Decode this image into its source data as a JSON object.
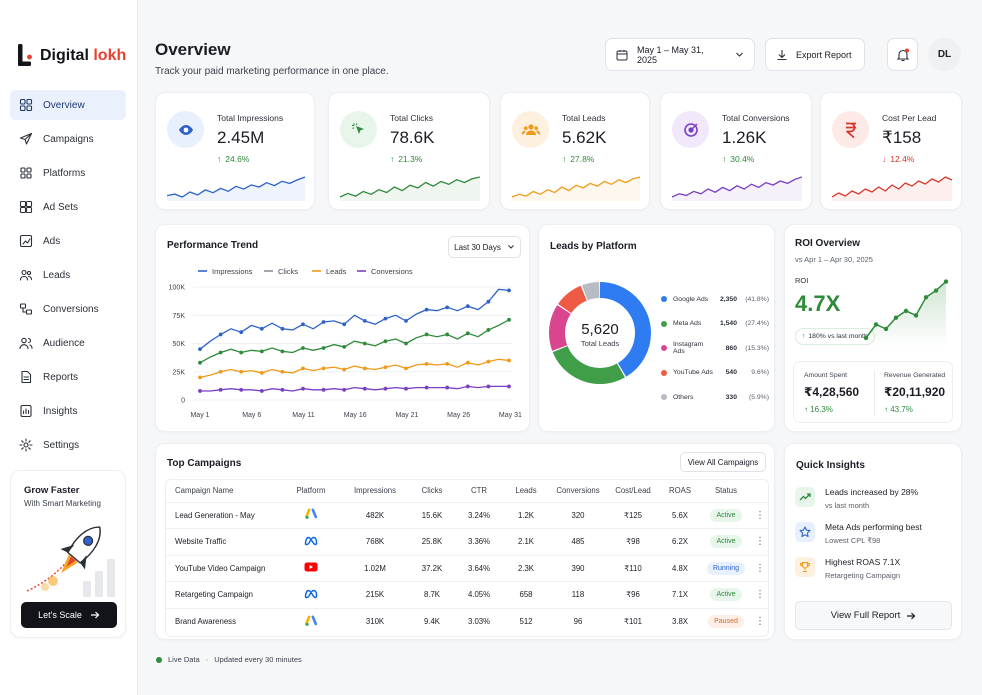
{
  "brand": {
    "name_part1": "Digital ",
    "name_part2": "lokh"
  },
  "nav": [
    {
      "label": "Overview",
      "icon": "grid-icon",
      "active": true
    },
    {
      "label": "Campaigns",
      "icon": "send-icon"
    },
    {
      "label": "Platforms",
      "icon": "apps-icon"
    },
    {
      "label": "Ad Sets",
      "icon": "layers-icon"
    },
    {
      "label": "Ads",
      "icon": "chart-icon"
    },
    {
      "label": "Leads",
      "icon": "users-icon"
    },
    {
      "label": "Conversions",
      "icon": "funnel-icon"
    },
    {
      "label": "Audience",
      "icon": "audience-icon"
    },
    {
      "label": "Reports",
      "icon": "document-icon"
    },
    {
      "label": "Insights",
      "icon": "insights-icon"
    },
    {
      "label": "Settings",
      "icon": "gear-icon"
    }
  ],
  "promo": {
    "title": "Grow Faster",
    "subtitle": "With Smart Marketing",
    "button": "Let's Scale"
  },
  "header": {
    "title": "Overview",
    "subtitle": "Track your paid marketing performance in one place.",
    "date_range": "May 1 – May 31, 2025",
    "export_label": "Export Report",
    "avatar_initials": "DL"
  },
  "kpis": [
    {
      "label": "Total Impressions",
      "value": "2.45M",
      "delta": "24.6%",
      "trend": "up",
      "color": "#2f63c9",
      "bg": "#e8f0fd",
      "icon": "eye-icon"
    },
    {
      "label": "Total Clicks",
      "value": "78.6K",
      "delta": "21.3%",
      "trend": "up",
      "color": "#2e8b3a",
      "bg": "#e7f5ea",
      "icon": "cursor-icon"
    },
    {
      "label": "Total Leads",
      "value": "5.62K",
      "delta": "27.8%",
      "trend": "up",
      "color": "#f09a1a",
      "bg": "#fdf0df",
      "icon": "users-icon"
    },
    {
      "label": "Total Conversions",
      "value": "1.26K",
      "delta": "30.4%",
      "trend": "up",
      "color": "#7b3fc4",
      "bg": "#f1e9fb",
      "icon": "target-icon"
    },
    {
      "label": "Cost Per Lead",
      "value": "₹158",
      "delta": "12.4%",
      "trend": "down",
      "color": "#d5362a",
      "bg": "#fdeae7",
      "icon": "rupee-icon"
    }
  ],
  "trend": {
    "title": "Performance Trend",
    "range_label": "Last 30 Days",
    "legend": [
      "Impressions",
      "Clicks",
      "Leads",
      "Conversions"
    ],
    "colors": [
      "#2f63c9",
      "#8a9099",
      "#f09a1a",
      "#7b3fc4"
    ],
    "line_colors": [
      "#2f63c9",
      "#2e8b3a",
      "#f09a1a",
      "#7b3fc4"
    ],
    "y_ticks": [
      "100K",
      "75K",
      "50K",
      "25K",
      "0"
    ],
    "x_ticks": [
      "May 1",
      "May 6",
      "May 11",
      "May 16",
      "May 21",
      "May 26",
      "May 31"
    ],
    "series": [
      [
        45,
        52,
        58,
        63,
        60,
        66,
        63,
        68,
        63,
        62,
        67,
        63,
        69,
        70,
        67,
        75,
        70,
        67,
        72,
        75,
        70,
        76,
        80,
        79,
        82,
        79,
        83,
        80,
        87,
        98,
        97
      ],
      [
        33,
        38,
        42,
        45,
        42,
        44,
        43,
        46,
        43,
        42,
        46,
        44,
        46,
        49,
        47,
        52,
        50,
        48,
        52,
        54,
        50,
        55,
        58,
        56,
        58,
        54,
        59,
        56,
        62,
        66,
        71
      ],
      [
        20,
        22,
        25,
        27,
        25,
        26,
        24,
        27,
        25,
        24,
        28,
        26,
        28,
        29,
        27,
        30,
        28,
        27,
        29,
        31,
        28,
        31,
        32,
        31,
        32,
        29,
        33,
        31,
        34,
        36,
        35
      ],
      [
        8,
        8,
        9,
        10,
        9,
        9,
        8,
        10,
        9,
        8,
        10,
        9,
        9,
        10,
        9,
        11,
        10,
        9,
        10,
        11,
        10,
        11,
        11,
        11,
        11,
        10,
        12,
        11,
        12,
        12,
        12
      ]
    ]
  },
  "leads_platform": {
    "title": "Leads by Platform",
    "total": "5,620",
    "total_label": "Total Leads",
    "items": [
      {
        "name": "Google Ads",
        "value": "2,350",
        "pct": "(41.8%)",
        "share": 41.8,
        "color": "#2f7bf2"
      },
      {
        "name": "Meta Ads",
        "value": "1,540",
        "pct": "(27.4%)",
        "share": 27.4,
        "color": "#3f9e47"
      },
      {
        "name": "Instagram Ads",
        "value": "860",
        "pct": "(15.3%)",
        "share": 15.3,
        "color": "#d9468f"
      },
      {
        "name": "YouTube Ads",
        "value": "540",
        "pct": "9.6%)",
        "share": 9.6,
        "color": "#ef5a44"
      },
      {
        "name": "Others",
        "value": "330",
        "pct": "(5.9%)",
        "share": 5.9,
        "color": "#b7bcc4"
      }
    ]
  },
  "roi": {
    "title": "ROI Overview",
    "period": "vs Apr 1 – Apr 30, 2025",
    "label": "ROI",
    "value": "4.7X",
    "badge": "180% vs last month",
    "series": [
      2.2,
      2.8,
      2.6,
      3.1,
      3.4,
      3.2,
      4.0,
      4.3,
      4.7
    ],
    "spent_label": "Amount Spent",
    "spent_value": "₹4,28,560",
    "spent_delta": "16.3%",
    "revenue_label": "Revenue Generated",
    "revenue_value": "₹20,11,920",
    "revenue_delta": "43.7%"
  },
  "campaigns": {
    "title": "Top Campaigns",
    "view_all": "View All Campaigns",
    "columns": [
      "Campaign Name",
      "Platform",
      "Impressions",
      "Clicks",
      "CTR",
      "Leads",
      "Conversions",
      "Cost/Lead",
      "ROAS",
      "Status"
    ],
    "rows": [
      {
        "name": "Lead Generation - May",
        "platform": "google",
        "impressions": "482K",
        "clicks": "15.6K",
        "ctr": "3.24%",
        "leads": "1.2K",
        "conversions": "320",
        "cpl": "₹125",
        "roas": "5.6X",
        "status": "Active"
      },
      {
        "name": "Website Traffic",
        "platform": "meta",
        "impressions": "768K",
        "clicks": "25.8K",
        "ctr": "3.36%",
        "leads": "2.1K",
        "conversions": "485",
        "cpl": "₹98",
        "roas": "6.2X",
        "status": "Active"
      },
      {
        "name": "YouTube Video Campaign",
        "platform": "youtube",
        "impressions": "1.02M",
        "clicks": "37.2K",
        "ctr": "3.64%",
        "leads": "2.3K",
        "conversions": "390",
        "cpl": "₹110",
        "roas": "4.8X",
        "status": "Running"
      },
      {
        "name": "Retargeting Campaign",
        "platform": "meta",
        "impressions": "215K",
        "clicks": "8.7K",
        "ctr": "4.05%",
        "leads": "658",
        "conversions": "118",
        "cpl": "₹96",
        "roas": "7.1X",
        "status": "Active"
      },
      {
        "name": "Brand Awareness",
        "platform": "google",
        "impressions": "310K",
        "clicks": "9.4K",
        "ctr": "3.03%",
        "leads": "512",
        "conversions": "96",
        "cpl": "₹101",
        "roas": "3.8X",
        "status": "Paused"
      }
    ]
  },
  "insights": {
    "title": "Quick Insights",
    "items": [
      {
        "title": "Leads increased by 28%",
        "sub": "vs last month",
        "icon": "trend-up-icon",
        "color": "#2e8b3a",
        "bg": "#e7f5ea"
      },
      {
        "title": "Meta Ads performing best",
        "sub": "Lowest CPL ₹98",
        "icon": "star-icon",
        "color": "#2f63c9",
        "bg": "#e8f0fd"
      },
      {
        "title": "Highest ROAS 7.1X",
        "sub": "Retargeting Campaign",
        "icon": "trophy-icon",
        "color": "#f09a1a",
        "bg": "#fdf0df"
      }
    ],
    "button": "View Full Report"
  },
  "footer": {
    "live": "Live Data",
    "updated": "Updated every 30 minutes"
  }
}
